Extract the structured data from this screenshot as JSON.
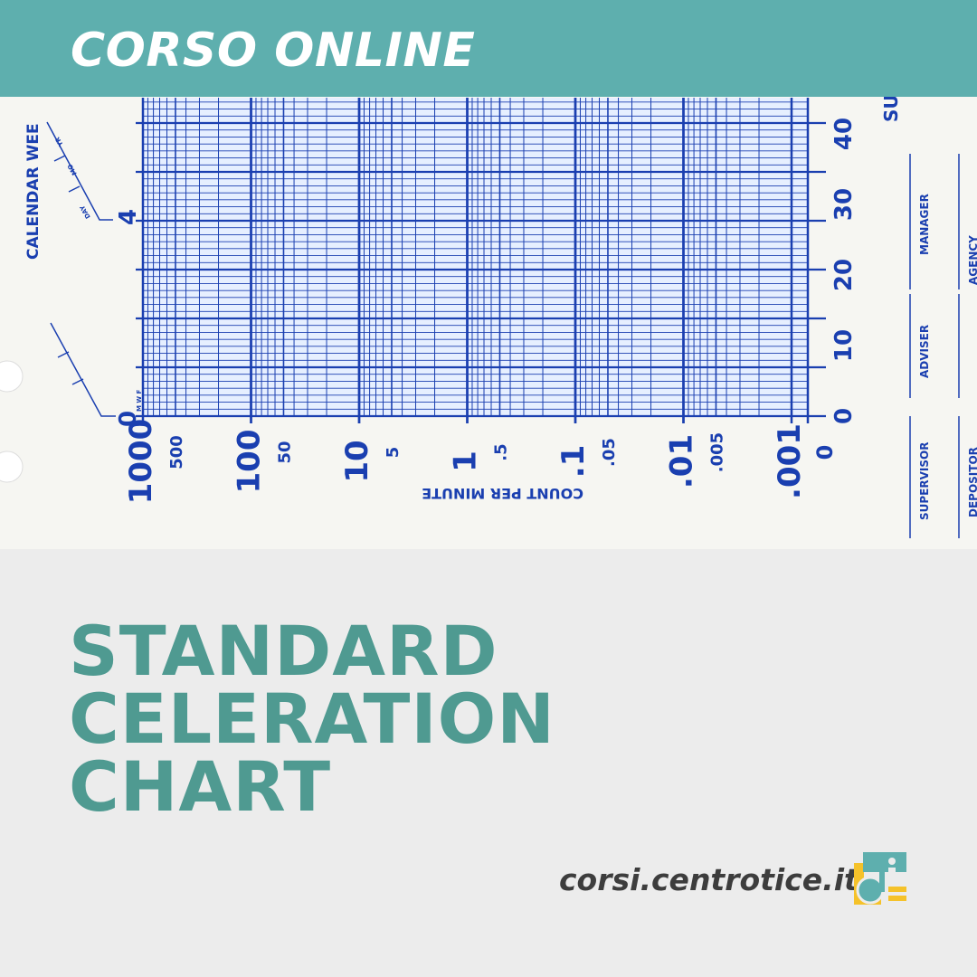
{
  "header": {
    "title": "CORSO ONLINE"
  },
  "chart_photo": {
    "y_axis_title": "CALENDAR WEE",
    "y_ticks": [
      "4",
      "0"
    ],
    "weekday_marks": "M W F",
    "date_labels": [
      "DAY",
      "MO",
      "YR"
    ],
    "x_ticks_major": [
      "1000",
      "100",
      "10",
      "1",
      ".1",
      ".01",
      ".001"
    ],
    "x_ticks_minor": [
      "500",
      "50",
      "5",
      ".5",
      ".05",
      ".005"
    ],
    "x_tick_zero": "0",
    "x_axis_title": "COUNT PER MINUTE",
    "right_ticks": [
      "0",
      "10",
      "20",
      "30",
      "40"
    ],
    "right_fragment": "SU",
    "signature_fields": [
      "SUPERVISOR",
      "ADVISER",
      "MANAGER",
      "DEPOSITOR",
      "AGENCY"
    ],
    "colors": {
      "ink": "#1a3fb0",
      "paper": "#f6f6f2"
    }
  },
  "title": {
    "lines": [
      "STANDARD",
      "CELERATION",
      "CHART"
    ]
  },
  "footer": {
    "url": "corsi.centrotice.it",
    "logo_icon": "centrotice-logo-icon"
  },
  "colors": {
    "accent": "#5eafae",
    "title": "#4f9a91",
    "background": "#ececec",
    "logo_yellow": "#f5c22a"
  }
}
